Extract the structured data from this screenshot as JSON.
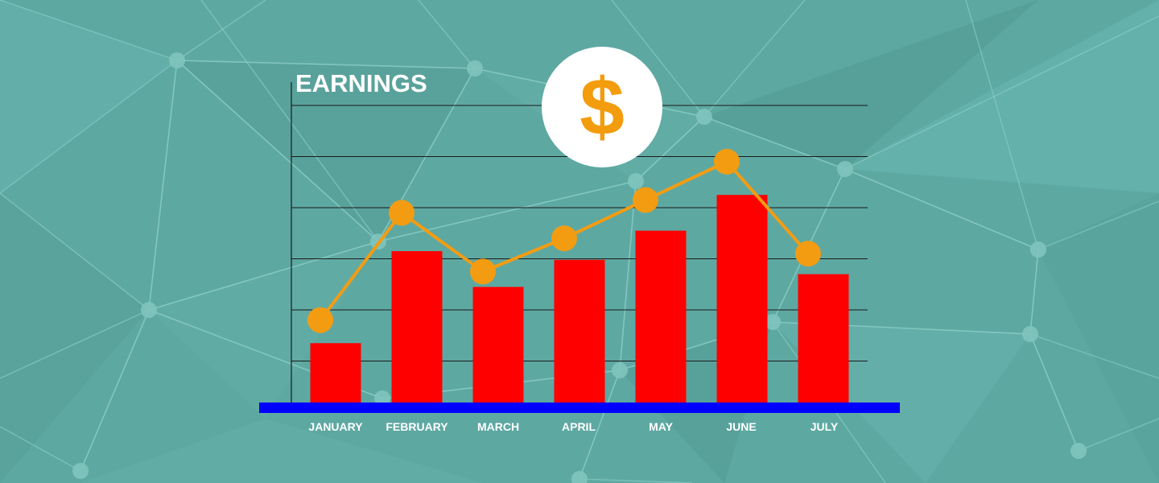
{
  "chart_data": {
    "type": "bar",
    "title": "EARNINGS",
    "categories": [
      "JANUARY",
      "FEBRUARY",
      "MARCH",
      "APRIL",
      "MAY",
      "JUNE",
      "JULY"
    ],
    "bar_values": [
      1.35,
      3.15,
      2.45,
      2.98,
      3.55,
      4.25,
      2.7
    ],
    "line_values": [
      1.8,
      3.9,
      2.75,
      3.4,
      4.15,
      4.9,
      3.1
    ],
    "ylim": [
      0,
      6
    ],
    "grid": true,
    "colors": {
      "bars": "#ff0000",
      "line": "#f39c12",
      "baseline": "#0000ff",
      "gridlines": "#1a1a1a",
      "text": "#ffffff"
    }
  },
  "badge": {
    "symbol": "$",
    "icon": "dollar-icon",
    "color": "#f39c0d"
  }
}
